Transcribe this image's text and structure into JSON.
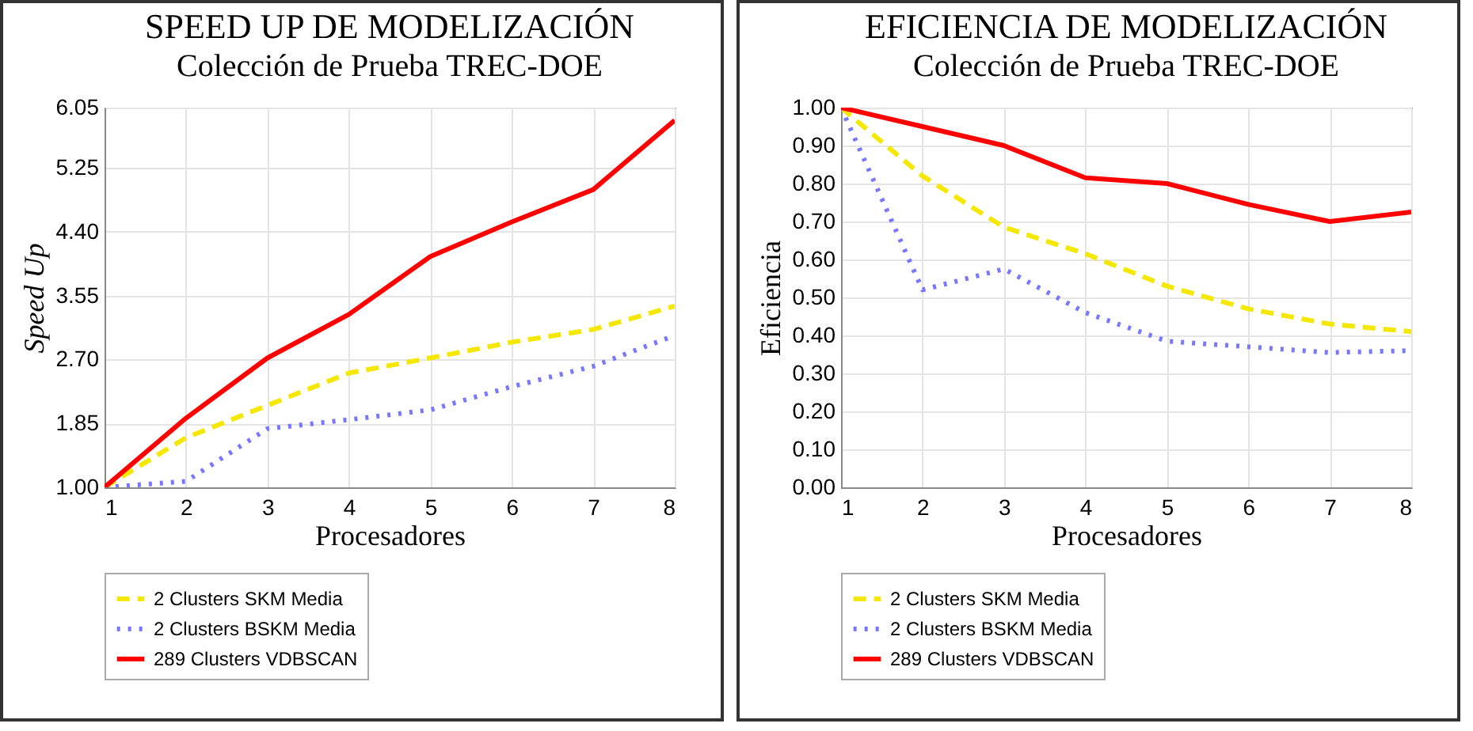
{
  "chart_data": [
    {
      "type": "line",
      "title": "SPEED UP DE MODELIZACIÓN",
      "subtitle": "Colección de Prueba TREC-DOE",
      "xlabel": "Procesadores",
      "ylabel": "Speed Up",
      "x": [
        1,
        2,
        3,
        4,
        5,
        6,
        7,
        8
      ],
      "xlim": [
        1,
        8
      ],
      "xticks": [
        1,
        2,
        3,
        4,
        5,
        6,
        7,
        8
      ],
      "ylim": [
        1,
        6.05
      ],
      "yticks": [
        {
          "value": 1,
          "label": "1.00"
        },
        1.85,
        {
          "value": 2.7,
          "label": "2.70"
        },
        3.55,
        {
          "value": 4.4,
          "label": "4.40"
        },
        5.25,
        6.05
      ],
      "grid": true,
      "legend": "bottom",
      "marker": "none",
      "series": [
        {
          "name": "2 Clusters SKM Media",
          "color": "#f5e800",
          "line_style": "dashed",
          "values": [
            1.0,
            1.66,
            2.09,
            2.52,
            2.72,
            2.93,
            3.1,
            3.41
          ]
        },
        {
          "name": "2 Clusters BSKM Media",
          "color": "#7878ff",
          "line_style": "dotted",
          "values": [
            1.0,
            1.08,
            1.78,
            1.9,
            2.03,
            2.34,
            2.61,
            3.02
          ]
        },
        {
          "name": "289 Clusters VDBSCAN",
          "color": "#ff0000",
          "line_style": "solid",
          "values": [
            1.0,
            1.92,
            2.72,
            3.3,
            4.07,
            4.53,
            4.96,
            5.88
          ]
        }
      ]
    },
    {
      "type": "line",
      "title": "EFICIENCIA DE MODELIZACIÓN",
      "subtitle": "Colección de Prueba TREC-DOE",
      "xlabel": "Procesadores",
      "ylabel": "Eficiencia",
      "x": [
        1,
        2,
        3,
        4,
        5,
        6,
        7,
        8
      ],
      "xlim": [
        1,
        8
      ],
      "xticks": [
        1,
        2,
        3,
        4,
        5,
        6,
        7,
        8
      ],
      "ylim": [
        0,
        1
      ],
      "yticks": [
        {
          "value": 0,
          "label": "0.00"
        },
        {
          "value": 0.1,
          "label": "0.10"
        },
        {
          "value": 0.2,
          "label": "0.20"
        },
        {
          "value": 0.3,
          "label": "0.30"
        },
        {
          "value": 0.4,
          "label": "0.40"
        },
        {
          "value": 0.5,
          "label": "0.50"
        },
        {
          "value": 0.6,
          "label": "0.60"
        },
        {
          "value": 0.7,
          "label": "0.70"
        },
        {
          "value": 0.8,
          "label": "0.80"
        },
        {
          "value": 0.9,
          "label": "0.90"
        },
        {
          "value": 1,
          "label": "1.00"
        }
      ],
      "grid": true,
      "legend": "bottom",
      "marker": "none",
      "series": [
        {
          "name": "2 Clusters SKM Media",
          "color": "#f5e800",
          "line_style": "dashed",
          "values": [
            1.0,
            0.82,
            0.685,
            0.615,
            0.53,
            0.47,
            0.43,
            0.41
          ]
        },
        {
          "name": "2 Clusters BSKM Media",
          "color": "#7878ff",
          "line_style": "dotted",
          "values": [
            1.0,
            0.52,
            0.575,
            0.46,
            0.385,
            0.37,
            0.355,
            0.36
          ]
        },
        {
          "name": "289 Clusters VDBSCAN",
          "color": "#ff0000",
          "line_style": "solid",
          "values": [
            1.0,
            0.95,
            0.9,
            0.815,
            0.8,
            0.745,
            0.7,
            0.725
          ]
        }
      ]
    }
  ]
}
